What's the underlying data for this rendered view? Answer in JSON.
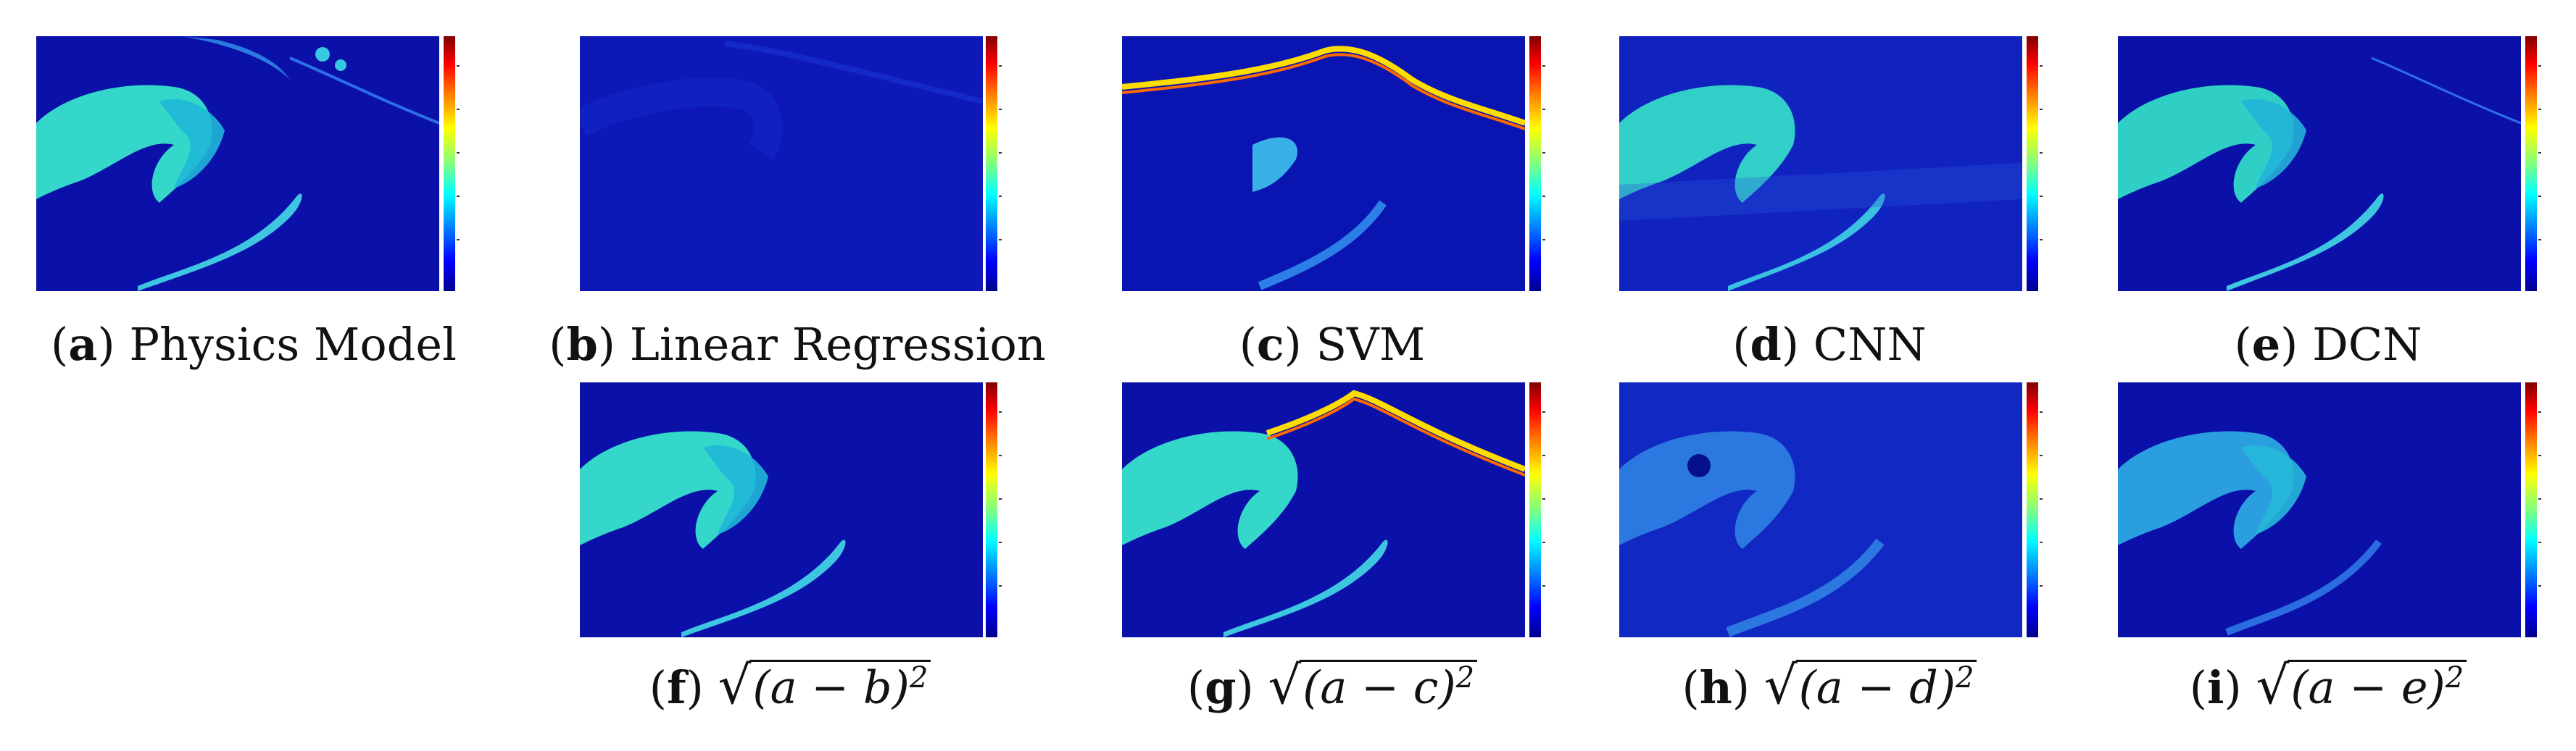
{
  "panels": [
    {
      "id": "a",
      "label": "a",
      "caption": "Physics Model"
    },
    {
      "id": "b",
      "label": "b",
      "caption": "Linear Regression"
    },
    {
      "id": "c",
      "label": "c",
      "caption": "SVM"
    },
    {
      "id": "d",
      "label": "d",
      "caption": "CNN"
    },
    {
      "id": "e",
      "label": "e",
      "caption": "DCN"
    },
    {
      "id": "f",
      "label": "f",
      "caption": "(a − b)",
      "sup": "2"
    },
    {
      "id": "g",
      "label": "g",
      "caption": "(a − c)",
      "sup": "2"
    },
    {
      "id": "h",
      "label": "h",
      "caption": "(a − d)",
      "sup": "2"
    },
    {
      "id": "i",
      "label": "i",
      "caption": "(a − e)",
      "sup": "2"
    }
  ],
  "colormap": "jet"
}
